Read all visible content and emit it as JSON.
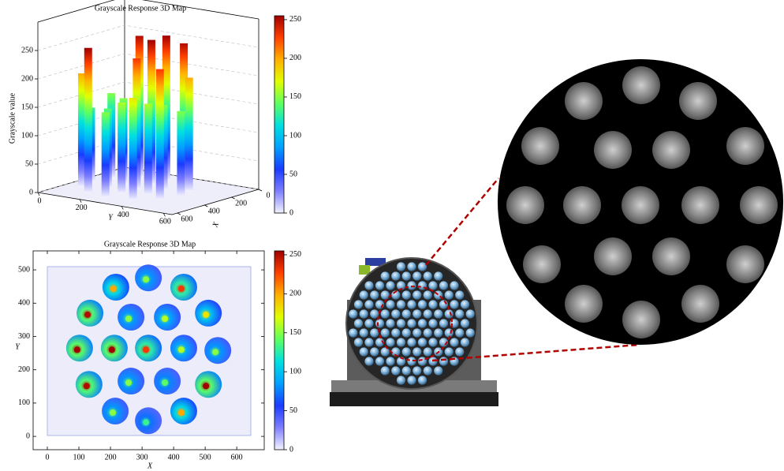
{
  "chart_data": [
    {
      "type": "surface3d",
      "title": "Grayscale Response 3D Map",
      "z_label": "Grayscale value",
      "x_label": "X",
      "y_label": "Y",
      "x": [
        217,
        320,
        432,
        135,
        265,
        380,
        510,
        102,
        212,
        320,
        432,
        540,
        132,
        265,
        380,
        510,
        215,
        320,
        432
      ],
      "y": [
        448,
        476,
        448,
        370,
        358,
        358,
        370,
        265,
        265,
        265,
        265,
        258,
        156,
        166,
        166,
        156,
        76,
        47,
        76
      ],
      "values": [
        200,
        150,
        230,
        250,
        150,
        160,
        180,
        255,
        255,
        230,
        160,
        150,
        250,
        150,
        140,
        255,
        150,
        130,
        200
      ],
      "xlim": [
        0,
        640
      ],
      "ylim": [
        0,
        640
      ],
      "zlim": [
        0,
        300
      ],
      "xticks": [
        0,
        200,
        400,
        600
      ],
      "yticks": [
        0,
        200,
        400,
        600
      ],
      "zticks": [
        0,
        50,
        100,
        150,
        200,
        250
      ],
      "colorbar": {
        "lim": [
          0,
          255
        ],
        "ticks": [
          0,
          50,
          100,
          150,
          200,
          250
        ]
      },
      "colormap": [
        "#f2f2ff",
        "#7f7fff",
        "#1a3cff",
        "#00a0ff",
        "#00e0e0",
        "#60ff60",
        "#e0ff00",
        "#ffb000",
        "#ff4000",
        "#a00000"
      ]
    },
    {
      "type": "heatmap",
      "title": "Grayscale Response 3D Map",
      "x_label": "X",
      "y_label": "Y",
      "x": [
        217,
        320,
        432,
        135,
        265,
        380,
        510,
        102,
        212,
        320,
        432,
        540,
        132,
        265,
        380,
        510,
        215,
        320,
        432
      ],
      "y": [
        448,
        476,
        448,
        370,
        358,
        358,
        370,
        265,
        265,
        265,
        265,
        258,
        156,
        166,
        166,
        156,
        76,
        47,
        76
      ],
      "values": [
        200,
        150,
        230,
        250,
        150,
        160,
        180,
        255,
        255,
        230,
        160,
        150,
        250,
        150,
        140,
        255,
        150,
        130,
        200
      ],
      "xlim": [
        -45,
        687
      ],
      "ylim": [
        -40,
        557
      ],
      "xticks": [
        0,
        100,
        200,
        300,
        400,
        500,
        600
      ],
      "yticks": [
        0,
        100,
        200,
        300,
        400,
        500
      ],
      "colorbar": {
        "lim": [
          0,
          255
        ],
        "ticks": [
          0,
          50,
          100,
          150,
          200,
          250
        ]
      },
      "colormap": [
        "#f2f2ff",
        "#7f7fff",
        "#1a3cff",
        "#00a0ff",
        "#00e0e0",
        "#60ff60",
        "#e0ff00",
        "#ffb000",
        "#ff4000",
        "#a00000"
      ]
    }
  ]
}
